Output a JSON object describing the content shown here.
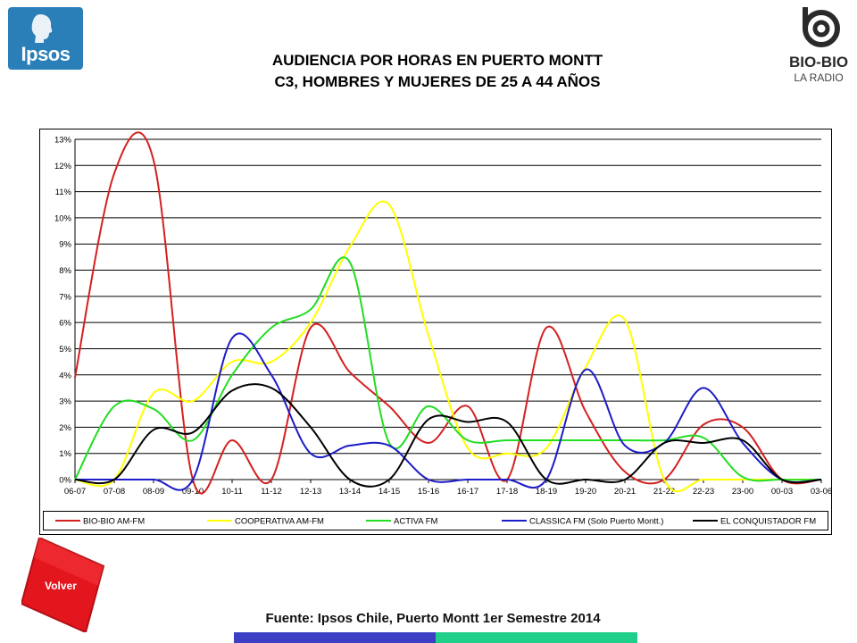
{
  "header": {
    "title_line1": "AUDIENCIA POR HORAS EN PUERTO MONTT",
    "title_line2": "C3, HOMBRES Y MUJERES DE 25 A 44 AÑOS",
    "left_logo_text": "Ipsos",
    "right_logo_text": "BIO-BIO",
    "right_logo_subtext": "LA RADIO"
  },
  "nav": {
    "back_label": "Volver"
  },
  "footer": {
    "source": "Fuente: Ipsos Chile, Puerto Montt 1er Semestre 2014"
  },
  "colors": {
    "ipsos_blue": "#2a7fb8",
    "volver_red": "#e3161e",
    "footer_blue": "#3a3fc4",
    "footer_green": "#1fcf8a"
  },
  "chart_data": {
    "type": "line",
    "title": "",
    "xlabel": "",
    "ylabel": "",
    "ylim": [
      0,
      13
    ],
    "y_ticks": [
      "0%",
      "1%",
      "2%",
      "3%",
      "4%",
      "5%",
      "6%",
      "7%",
      "8%",
      "9%",
      "10%",
      "11%",
      "12%",
      "13%"
    ],
    "grid": true,
    "legend_position": "bottom",
    "categories": [
      "06-07",
      "07-08",
      "08-09",
      "09-10",
      "10-11",
      "11-12",
      "12-13",
      "13-14",
      "14-15",
      "15-16",
      "16-17",
      "17-18",
      "18-19",
      "19-20",
      "20-21",
      "21-22",
      "22-23",
      "23-00",
      "00-03",
      "03-06"
    ],
    "series": [
      {
        "name": "BIO-BIO AM-FM",
        "color": "#d42020",
        "values": [
          3.9,
          11.7,
          12.2,
          0.0,
          1.5,
          0.0,
          5.8,
          4.1,
          2.8,
          1.4,
          2.8,
          0.0,
          5.8,
          2.6,
          0.3,
          0.0,
          2.1,
          2.0,
          0.0,
          0.0
        ]
      },
      {
        "name": "COOPERATIVA AM-FM",
        "color": "#ffff00",
        "values": [
          0.0,
          0.0,
          3.3,
          3.0,
          4.5,
          4.5,
          6.0,
          8.9,
          10.5,
          5.5,
          1.2,
          1.0,
          1.2,
          4.3,
          6.1,
          0.0,
          0.0,
          0.0,
          0.0,
          0.0
        ]
      },
      {
        "name": "ACTIVA FM",
        "color": "#22dd22",
        "values": [
          0.0,
          2.8,
          2.7,
          1.5,
          4.0,
          5.8,
          6.5,
          8.3,
          1.4,
          2.8,
          1.5,
          1.5,
          1.5,
          1.5,
          1.5,
          1.5,
          1.6,
          0.1,
          0.0,
          0.0
        ]
      },
      {
        "name": "CLASSICA FM  (Solo Puerto Montt.)",
        "color": "#1c1cc8",
        "values": [
          0.0,
          0.0,
          0.0,
          0.0,
          5.4,
          4.0,
          1.0,
          1.3,
          1.3,
          0.0,
          0.0,
          0.0,
          0.0,
          4.2,
          1.3,
          1.4,
          3.5,
          1.4,
          0.0,
          0.0
        ]
      },
      {
        "name": "EL CONQUISTADOR FM",
        "color": "#000000",
        "values": [
          0.0,
          0.0,
          1.9,
          1.8,
          3.4,
          3.5,
          2.0,
          0.0,
          0.0,
          2.3,
          2.2,
          2.2,
          0.0,
          0.0,
          0.0,
          1.4,
          1.4,
          1.5,
          0.0,
          0.0
        ]
      }
    ]
  }
}
